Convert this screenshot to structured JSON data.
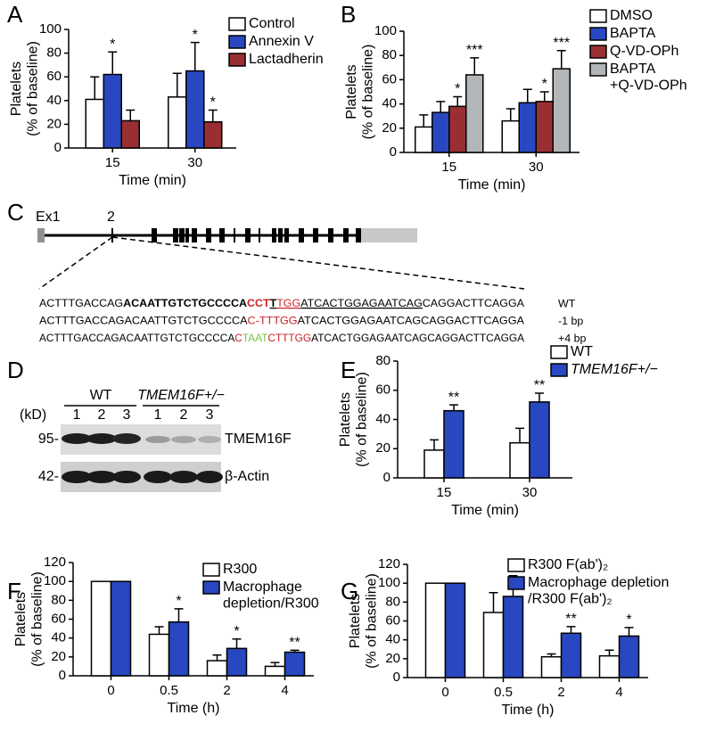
{
  "chart_data": [
    {
      "panel": "A",
      "type": "bar",
      "categories": [
        "15",
        "30"
      ],
      "xlabel": "Time (min)",
      "ylabel": "Platelets\n(% of baseline)",
      "ylim": [
        0,
        100
      ],
      "yticks": [
        0,
        20,
        40,
        60,
        80,
        100
      ],
      "series": [
        {
          "name": "Control",
          "color": "#ffffff",
          "values": [
            41,
            43
          ],
          "errors": [
            19,
            20
          ]
        },
        {
          "name": "Annexin V",
          "color": "#2847c0",
          "values": [
            62,
            65
          ],
          "errors": [
            19,
            24
          ],
          "significance": [
            "*",
            "*"
          ]
        },
        {
          "name": "Lactadherin",
          "color": "#9a2f33",
          "values": [
            23,
            22
          ],
          "errors": [
            9,
            10
          ],
          "significance": [
            null,
            "*"
          ]
        }
      ]
    },
    {
      "panel": "B",
      "type": "bar",
      "categories": [
        "15",
        "30"
      ],
      "xlabel": "Time (min)",
      "ylabel": "Platelets\n(% of baseline)",
      "ylim": [
        0,
        100
      ],
      "yticks": [
        0,
        20,
        40,
        60,
        80,
        100
      ],
      "series": [
        {
          "name": "DMSO",
          "color": "#ffffff",
          "values": [
            21,
            26
          ],
          "errors": [
            10,
            10
          ]
        },
        {
          "name": "BAPTA",
          "color": "#2847c0",
          "values": [
            33,
            41
          ],
          "errors": [
            9,
            11
          ]
        },
        {
          "name": "Q-VD-OPh",
          "color": "#9a2f33",
          "values": [
            38,
            42
          ],
          "errors": [
            8,
            8
          ],
          "significance": [
            "*",
            "*"
          ]
        },
        {
          "name": "BAPTA\n+Q-VD-OPh",
          "color": "#b3b6b8",
          "values": [
            64,
            69
          ],
          "errors": [
            14,
            15
          ],
          "significance": [
            "***",
            "***"
          ]
        }
      ]
    },
    {
      "panel": "E",
      "type": "bar",
      "categories": [
        "15",
        "30"
      ],
      "xlabel": "Time (min)",
      "ylabel": "Platelets\n(% of baseline)",
      "ylim": [
        0,
        80
      ],
      "yticks": [
        0,
        20,
        40,
        60,
        80
      ],
      "series": [
        {
          "name": "WT",
          "color": "#ffffff",
          "values": [
            19,
            24
          ],
          "errors": [
            7,
            10
          ]
        },
        {
          "name": "TMEM16F+/−",
          "color": "#2847c0",
          "values": [
            46,
            52
          ],
          "errors": [
            4,
            6
          ],
          "significance": [
            "**",
            "**"
          ]
        }
      ]
    },
    {
      "panel": "F",
      "type": "bar",
      "categories": [
        "0",
        "0.5",
        "2",
        "4"
      ],
      "xlabel": "Time (h)",
      "ylabel": "Platelets\n(% of baseline)",
      "ylim": [
        0,
        120
      ],
      "yticks": [
        0,
        20,
        40,
        60,
        80,
        100,
        120
      ],
      "series": [
        {
          "name": "R300",
          "color": "#ffffff",
          "values": [
            100,
            44,
            16,
            10
          ],
          "errors": [
            null,
            8,
            6,
            4
          ]
        },
        {
          "name": "Macrophage\ndepletion/R300",
          "color": "#2847c0",
          "values": [
            100,
            57,
            29,
            25
          ],
          "errors": [
            null,
            14,
            10,
            2
          ],
          "significance": [
            null,
            "*",
            "*",
            "**"
          ]
        }
      ]
    },
    {
      "panel": "G",
      "type": "bar",
      "categories": [
        "0",
        "0.5",
        "2",
        "4"
      ],
      "xlabel": "Time (h)",
      "ylabel": "Platelets\n(% of baseline)",
      "ylim": [
        0,
        120
      ],
      "yticks": [
        0,
        20,
        40,
        60,
        80,
        100,
        120
      ],
      "series": [
        {
          "name": "R300 F(ab')₂",
          "color": "#ffffff",
          "values": [
            100,
            69,
            22,
            23
          ],
          "errors": [
            null,
            21,
            3,
            6
          ]
        },
        {
          "name": "Macrophage depletion\n/R300 F(ab')₂",
          "color": "#2847c0",
          "values": [
            100,
            86,
            47,
            44
          ],
          "errors": [
            null,
            22,
            7,
            9
          ],
          "significance": [
            null,
            null,
            "**",
            "*"
          ]
        }
      ]
    }
  ],
  "gene_diagram": {
    "panel": "C",
    "exon_labels": [
      "Ex1",
      "2"
    ],
    "sequences": [
      {
        "label": "WT",
        "segments": [
          {
            "text": "ACTTTGACCAG",
            "color": "#000000"
          },
          {
            "text": "ACAATTGTCTGCCCCA",
            "color": "#000000",
            "bold": true
          },
          {
            "text": "CCT",
            "color": "#d0202a",
            "bold": true
          },
          {
            "text": "T",
            "color": "#000000",
            "bold": true,
            "underline": true
          },
          {
            "text": "TGG",
            "color": "#d0202a",
            "underline": true
          },
          {
            "text": "ATCACTGGAGAATCAG",
            "color": "#000000",
            "underline": true
          },
          {
            "text": "CAGGACTTCAGGA",
            "color": "#000000"
          }
        ]
      },
      {
        "label": "-1 bp",
        "segments": [
          {
            "text": "ACTTTGACCAGACAATTGTCTGCCCCA",
            "color": "#000000"
          },
          {
            "text": "C-TTTGG",
            "color": "#d0202a"
          },
          {
            "text": "ATCACTGGAGAATCAGCAGGACTTCAGGA",
            "color": "#000000"
          }
        ]
      },
      {
        "label": "+4 bp",
        "segments": [
          {
            "text": "ACTTTGACCAGACAATTGTCTGCCCCA",
            "color": "#000000"
          },
          {
            "text": "C",
            "color": "#d0202a"
          },
          {
            "text": "TAAT",
            "color": "#7cc242"
          },
          {
            "text": "CTTTGG",
            "color": "#d0202a"
          },
          {
            "text": "ATCACTGGAGAATCAGCAGGACTTCAGGA",
            "color": "#000000"
          }
        ]
      }
    ]
  },
  "western_blot": {
    "panel": "D",
    "groups": [
      "WT",
      "TMEM16F+/−"
    ],
    "lanes": [
      "1",
      "2",
      "3",
      "1",
      "2",
      "3"
    ],
    "unit_label": "(kD)",
    "rows": [
      {
        "marker": "95-",
        "protein": "TMEM16F"
      },
      {
        "marker": "42-",
        "protein": "β-Actin"
      }
    ]
  }
}
